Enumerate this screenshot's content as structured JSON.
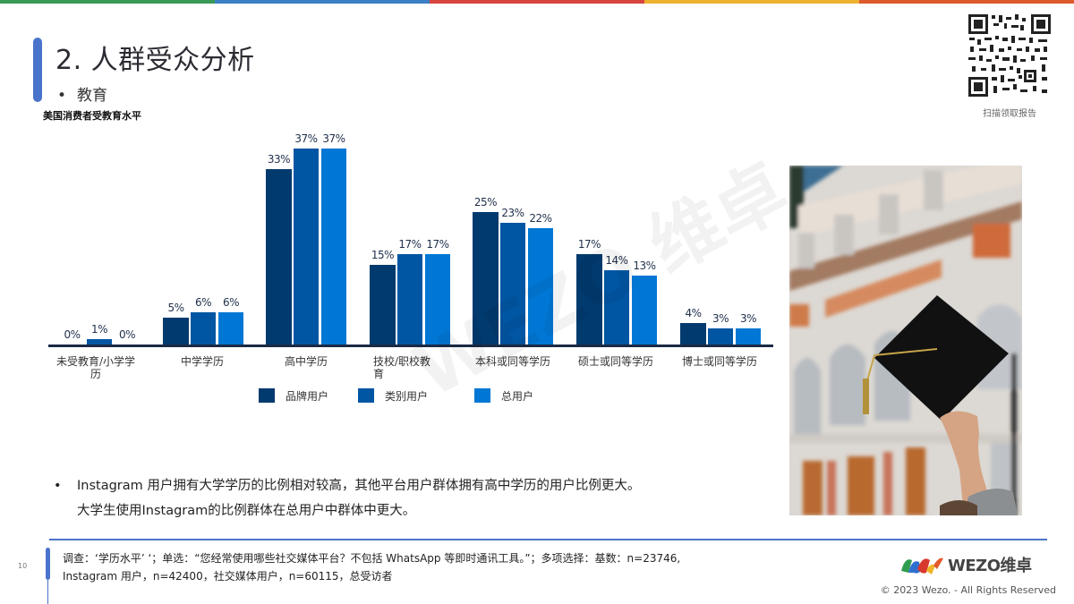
{
  "topbar_colors": [
    "#3a9a55",
    "#3b7fc4",
    "#d64540",
    "#ecb12f",
    "#dd5a2d"
  ],
  "header": {
    "title": "2. 人群受众分析",
    "bullet": "•",
    "subtitle": "教育"
  },
  "qr": {
    "caption": "扫描领取报告"
  },
  "chart_data": {
    "type": "bar",
    "title": "美国消费者受教育水平",
    "xlabel": "",
    "ylabel": "",
    "ylim": [
      0,
      40
    ],
    "grid": false,
    "legend_position": "bottom",
    "categories": [
      "未受教育/小学学历",
      "中学学历",
      "高中学历",
      "技校/职校教育",
      "本科或同等学历",
      "硕士或同等学历",
      "博士或同等学历"
    ],
    "series": [
      {
        "name": "品牌用户",
        "color": "#003a6e",
        "values": [
          0,
          5,
          33,
          15,
          25,
          17,
          4
        ]
      },
      {
        "name": "类别用户",
        "color": "#0056a3",
        "values": [
          1,
          6,
          37,
          17,
          23,
          14,
          3
        ]
      },
      {
        "name": "总用户",
        "color": "#0077d4",
        "values": [
          0,
          6,
          37,
          17,
          22,
          13,
          3
        ]
      }
    ],
    "value_labels": [
      [
        "0%",
        "1%",
        "0%"
      ],
      [
        "5%",
        "6%",
        "6%"
      ],
      [
        "33%",
        "37%",
        "37%"
      ],
      [
        "15%",
        "17%",
        "17%"
      ],
      [
        "25%",
        "23%",
        "22%"
      ],
      [
        "17%",
        "14%",
        "13%"
      ],
      [
        "4%",
        "3%",
        "3%"
      ]
    ]
  },
  "category_labels": {
    "c0_line1": "未受教育/小学学",
    "c0_line2": "历",
    "c1": "中学学历",
    "c2": "高中学历",
    "c3_line1": "技校/职校教",
    "c3_line2": "育",
    "c4": "本科或同等学历",
    "c5": "硕士或同等学历",
    "c6": "博士或同等学历"
  },
  "legend": [
    {
      "label": "品牌用户",
      "color": "#003a6e"
    },
    {
      "label": "类别用户",
      "color": "#0056a3"
    },
    {
      "label": "总用户",
      "color": "#0077d4"
    }
  ],
  "note": {
    "bullet": "•",
    "line1": "Instagram 用户拥有大学学历的比例相对较高，其他平台用户群体拥有高中学历的用户比例更大。",
    "line2": "大学生使用Instagram的比例群体在总用户中群体中更大。"
  },
  "footer": {
    "page_number": "10",
    "source_line1": "调查：‘学历水平’ ‘；单选：“您经常使用哪些社交媒体平台？不包括 WhatsApp 等即时通讯工具。”；多项选择：基数：n=23746,",
    "source_line2": "Instagram 用户，n=42400，社交媒体用户，n=60115，总受访者",
    "logo_text": "WEZO维卓",
    "copyright": "© 2023 Wezo. - All Rights Reserved"
  },
  "watermark": "WEZO 维卓"
}
